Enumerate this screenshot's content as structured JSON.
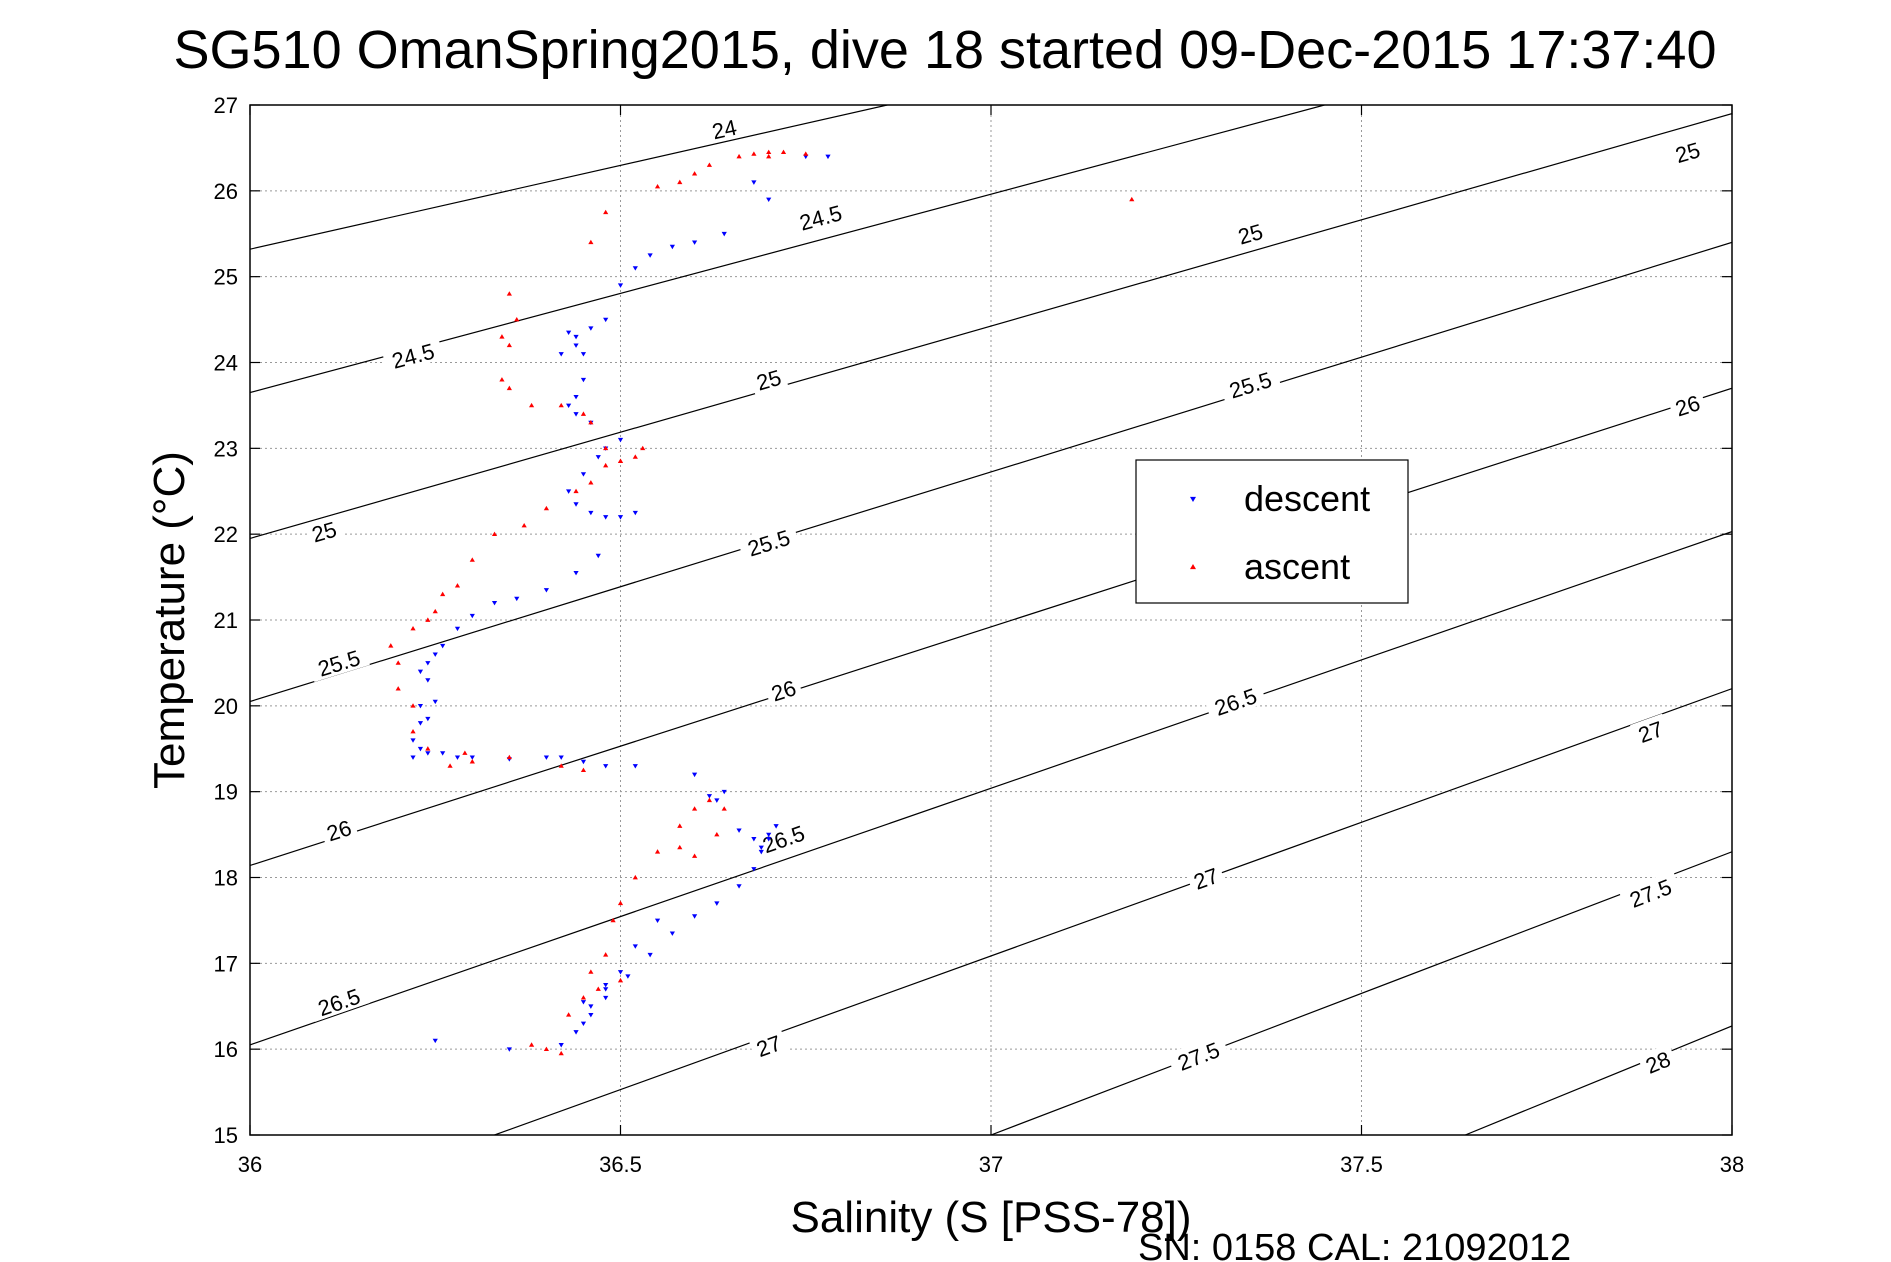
{
  "chart_data": {
    "type": "scatter",
    "title": "SG510 OmanSpring2015, dive 18 started 09-Dec-2015 17:37:40",
    "xlabel": "Salinity (S [PSS-78])",
    "ylabel": "Temperature (°C)",
    "footer": "SN: 0158  CAL: 21092012",
    "xlim": [
      36,
      38
    ],
    "ylim": [
      15,
      27
    ],
    "xticks": [
      36,
      36.5,
      37,
      37.5,
      38
    ],
    "xtick_labels": [
      "36",
      "36.5",
      "37",
      "37.5",
      "38"
    ],
    "yticks": [
      15,
      16,
      17,
      18,
      19,
      20,
      21,
      22,
      23,
      24,
      25,
      26,
      27
    ],
    "ytick_labels": [
      "15",
      "16",
      "17",
      "18",
      "19",
      "20",
      "21",
      "22",
      "23",
      "24",
      "25",
      "26",
      "27"
    ],
    "grid": true,
    "legend_position": "center-right",
    "contours": {
      "label": "sigma-t isopycnals",
      "levels": [
        "24",
        "24.5",
        "25",
        "25.5",
        "26",
        "26.5",
        "27",
        "27.5",
        "28"
      ],
      "lines": [
        {
          "level": "24",
          "points": [
            [
              36,
              25.32
            ],
            [
              36.86,
              27
            ]
          ],
          "labels": [
            [
              36.64,
              26.72
            ]
          ]
        },
        {
          "level": "24.5",
          "points": [
            [
              36,
              23.65
            ],
            [
              37.45,
              27
            ]
          ],
          "labels": [
            [
              36.22,
              24.08
            ],
            [
              36.77,
              25.69
            ]
          ]
        },
        {
          "level": "25",
          "points": [
            [
              36,
              21.95
            ],
            [
              38,
              26.9
            ]
          ],
          "labels": [
            [
              36.1,
              22.03
            ],
            [
              36.7,
              23.8
            ],
            [
              37.35,
              25.5
            ],
            [
              37.94,
              26.45
            ]
          ]
        },
        {
          "level": "25.5",
          "points": [
            [
              36,
              20.05
            ],
            [
              38,
              25.4
            ]
          ],
          "labels": [
            [
              36.12,
              20.5
            ],
            [
              36.7,
              21.9
            ],
            [
              37.35,
              23.74
            ]
          ]
        },
        {
          "level": "26",
          "points": [
            [
              36,
              18.14
            ],
            [
              38,
              23.7
            ]
          ],
          "labels": [
            [
              36.12,
              18.55
            ],
            [
              36.72,
              20.18
            ],
            [
              37.94,
              23.5
            ]
          ]
        },
        {
          "level": "26.5",
          "points": [
            [
              36,
              16.05
            ],
            [
              38,
              22.03
            ]
          ],
          "labels": [
            [
              36.12,
              16.55
            ],
            [
              36.72,
              18.45
            ],
            [
              37.33,
              20.05
            ]
          ]
        },
        {
          "level": "27",
          "points": [
            [
              36.33,
              15
            ],
            [
              38,
              20.2
            ]
          ],
          "labels": [
            [
              36.7,
              16.04
            ],
            [
              37.29,
              17.99
            ],
            [
              37.89,
              19.7
            ]
          ]
        },
        {
          "level": "27.5",
          "points": [
            [
              37.0,
              15
            ],
            [
              38,
              18.3
            ]
          ],
          "labels": [
            [
              37.28,
              15.92
            ],
            [
              37.89,
              17.82
            ]
          ]
        },
        {
          "level": "28",
          "points": [
            [
              37.64,
              15
            ],
            [
              38,
              16.27
            ]
          ],
          "labels": [
            [
              37.9,
              15.85
            ]
          ]
        }
      ]
    },
    "series": [
      {
        "name": "descent",
        "color": "#0000ff",
        "marker": "triangle-down",
        "x": [
          36.25,
          36.35,
          36.42,
          36.45,
          36.46,
          36.48,
          36.5,
          36.52,
          36.55,
          36.48,
          36.46,
          36.44,
          36.45,
          36.48,
          36.51,
          36.54,
          36.57,
          36.6,
          36.63,
          36.66,
          36.68,
          36.69,
          36.7,
          36.71,
          36.7,
          36.69,
          36.68,
          36.66,
          36.63,
          36.62,
          36.64,
          36.6,
          36.52,
          36.48,
          36.45,
          36.42,
          36.4,
          36.35,
          36.3,
          36.28,
          36.26,
          36.24,
          36.23,
          36.22,
          36.22,
          36.23,
          36.24,
          36.23,
          36.25,
          36.24,
          36.23,
          36.24,
          36.25,
          36.26,
          36.28,
          36.3,
          36.33,
          36.36,
          36.4,
          36.44,
          36.47,
          36.5,
          36.52,
          36.48,
          36.46,
          36.44,
          36.43,
          36.45,
          36.47,
          36.48,
          36.5,
          36.46,
          36.44,
          36.43,
          36.44,
          36.45,
          36.45,
          36.44,
          36.43,
          36.42,
          36.44,
          36.46,
          36.48,
          36.5,
          36.52,
          36.54,
          36.57,
          36.6,
          36.64,
          36.7,
          36.68,
          36.75,
          36.78
        ],
        "y": [
          16.1,
          16.0,
          16.05,
          16.3,
          16.5,
          16.7,
          16.9,
          17.2,
          17.5,
          16.6,
          16.4,
          16.2,
          16.55,
          16.75,
          16.85,
          17.1,
          17.35,
          17.55,
          17.7,
          17.9,
          18.1,
          18.3,
          18.5,
          18.6,
          18.45,
          18.35,
          18.45,
          18.55,
          18.9,
          18.95,
          19.0,
          19.2,
          19.3,
          19.3,
          19.35,
          19.4,
          19.4,
          19.38,
          19.4,
          19.4,
          19.45,
          19.45,
          19.5,
          19.4,
          19.6,
          19.8,
          19.85,
          20.0,
          20.05,
          20.3,
          20.4,
          20.5,
          20.6,
          20.7,
          20.9,
          21.05,
          21.2,
          21.25,
          21.35,
          21.55,
          21.75,
          22.2,
          22.25,
          22.2,
          22.25,
          22.35,
          22.5,
          22.7,
          22.9,
          23.0,
          23.1,
          23.3,
          23.4,
          23.5,
          23.6,
          23.8,
          24.1,
          24.3,
          24.35,
          24.1,
          24.2,
          24.4,
          24.5,
          24.9,
          25.1,
          25.25,
          25.35,
          25.4,
          25.5,
          25.9,
          26.1,
          26.4,
          26.4
        ]
      },
      {
        "name": "ascent",
        "color": "#ff0000",
        "marker": "triangle-up",
        "x": [
          36.42,
          36.4,
          36.38,
          36.43,
          36.45,
          36.46,
          36.48,
          36.49,
          36.5,
          36.52,
          36.47,
          36.5,
          36.55,
          36.58,
          36.6,
          36.62,
          36.64,
          36.63,
          36.6,
          36.58,
          36.45,
          36.42,
          36.35,
          36.3,
          36.27,
          36.29,
          36.24,
          36.22,
          36.22,
          36.2,
          36.2,
          36.19,
          36.22,
          36.24,
          36.25,
          36.26,
          36.28,
          36.3,
          36.33,
          36.37,
          36.4,
          36.44,
          36.46,
          36.48,
          36.5,
          36.52,
          36.53,
          36.5,
          36.48,
          36.46,
          36.45,
          36.42,
          36.38,
          36.35,
          36.34,
          36.35,
          36.36,
          36.34,
          36.35,
          36.46,
          36.48,
          36.55,
          36.58,
          36.6,
          36.62,
          36.66,
          36.7,
          36.72,
          36.75,
          36.7,
          36.68,
          37.19
        ],
        "y": [
          15.95,
          16.0,
          16.05,
          16.4,
          16.6,
          16.9,
          17.1,
          17.5,
          17.7,
          18.0,
          16.7,
          16.8,
          18.3,
          18.6,
          18.8,
          18.9,
          18.8,
          18.5,
          18.25,
          18.35,
          19.25,
          19.3,
          19.4,
          19.35,
          19.3,
          19.45,
          19.5,
          19.7,
          20.0,
          20.2,
          20.5,
          20.7,
          20.9,
          21.0,
          21.1,
          21.3,
          21.4,
          21.7,
          22.0,
          22.1,
          22.3,
          22.5,
          22.6,
          22.8,
          22.85,
          22.9,
          23.0,
          22.85,
          23.0,
          23.3,
          23.4,
          23.5,
          23.5,
          23.7,
          23.8,
          24.2,
          24.5,
          24.3,
          24.8,
          25.4,
          25.75,
          26.05,
          26.1,
          26.2,
          26.3,
          26.4,
          26.45,
          26.45,
          26.43,
          26.4,
          26.43,
          25.9
        ]
      }
    ]
  }
}
